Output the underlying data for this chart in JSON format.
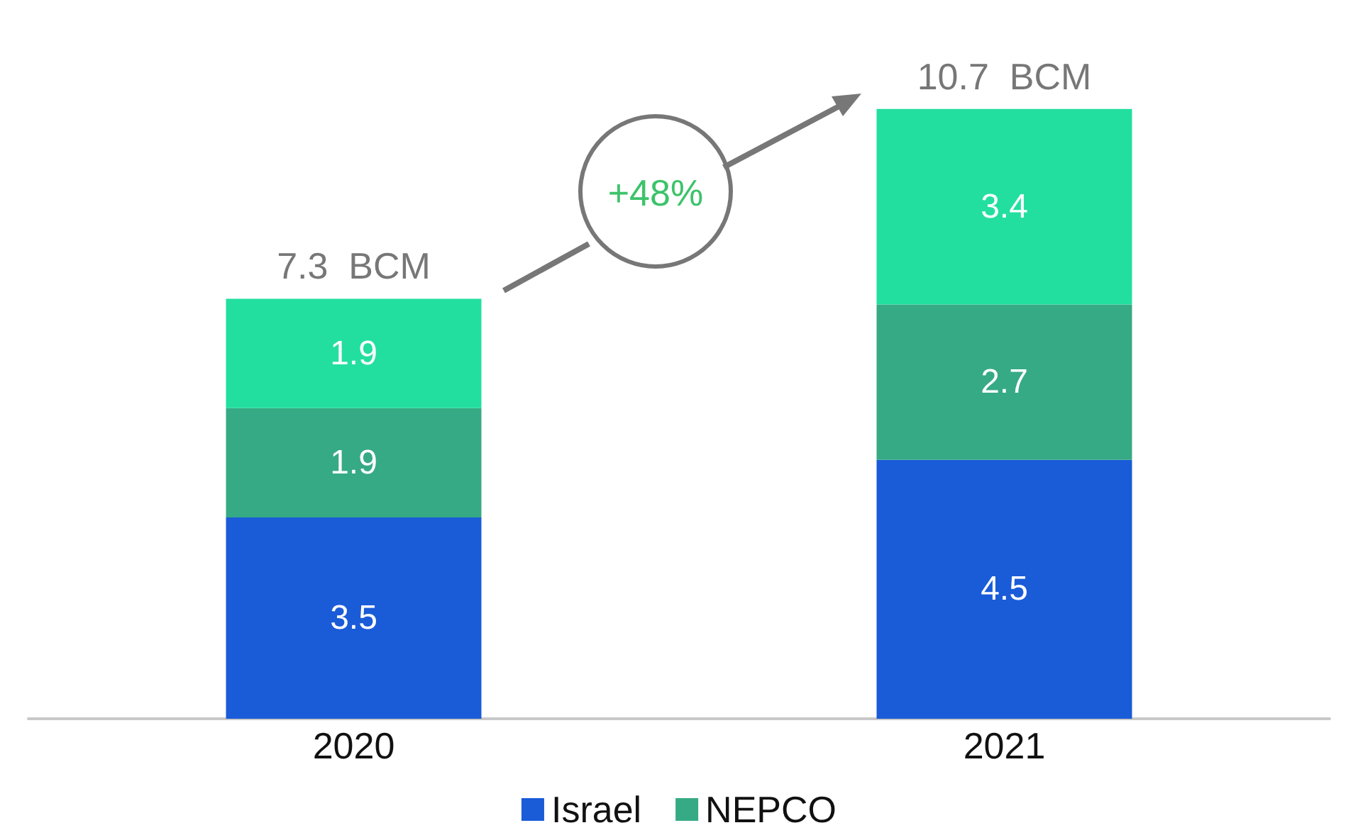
{
  "chart_data": {
    "type": "bar",
    "stacked": true,
    "categories": [
      "2020",
      "2021"
    ],
    "series": [
      {
        "name": "Israel",
        "color": "#1a5bd8",
        "values": [
          3.5,
          4.5
        ]
      },
      {
        "name": "NEPCO",
        "color": "#36aa84",
        "values": [
          1.9,
          2.7
        ]
      },
      {
        "color": "#22dfa0",
        "values": [
          1.9,
          3.4
        ]
      }
    ],
    "data_labels": true,
    "totals": [
      "7.3  BCM",
      "10.7  BCM"
    ],
    "annotations": [
      "+48%"
    ],
    "legend": "bottom"
  }
}
